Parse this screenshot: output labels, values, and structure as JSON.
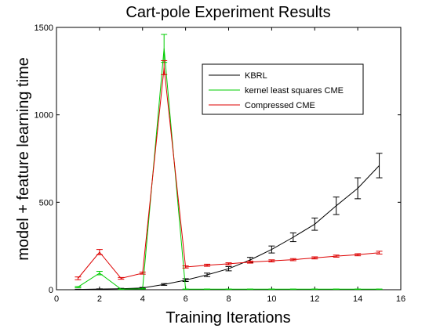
{
  "chart_data": {
    "type": "line",
    "title": "Cart-pole Experiment Results",
    "xlabel": "Training Iterations",
    "ylabel": "model + feature learning time",
    "xlim": [
      0,
      16
    ],
    "ylim": [
      0,
      1500
    ],
    "xticks": [
      0,
      2,
      4,
      6,
      8,
      10,
      12,
      14,
      16
    ],
    "yticks": [
      0,
      500,
      1000,
      1500
    ],
    "grid": false,
    "legend_position": "top-right",
    "x": [
      1,
      2,
      3,
      4,
      5,
      6,
      7,
      8,
      9,
      10,
      11,
      12,
      13,
      14,
      15
    ],
    "series": [
      {
        "name": "KBRL",
        "color": "#000000",
        "values": [
          2,
          4,
          6,
          10,
          30,
          55,
          85,
          120,
          170,
          230,
          300,
          375,
          480,
          580,
          710
        ],
        "errors": [
          1,
          1,
          2,
          3,
          5,
          8,
          10,
          12,
          15,
          20,
          25,
          35,
          50,
          60,
          70
        ]
      },
      {
        "name": "kernel least squares CME",
        "color": "#00cc00",
        "values": [
          15,
          95,
          3,
          5,
          1380,
          3,
          3,
          3,
          3,
          3,
          3,
          3,
          3,
          3,
          3
        ],
        "errors": [
          3,
          10,
          1,
          1,
          80,
          1,
          1,
          1,
          1,
          1,
          1,
          1,
          1,
          1,
          1
        ]
      },
      {
        "name": "Compressed CME",
        "color": "#dd0000",
        "values": [
          65,
          215,
          65,
          95,
          1270,
          130,
          140,
          148,
          158,
          165,
          172,
          182,
          192,
          200,
          212
        ],
        "errors": [
          8,
          15,
          5,
          6,
          40,
          6,
          6,
          6,
          6,
          6,
          6,
          6,
          6,
          6,
          8
        ]
      }
    ]
  }
}
